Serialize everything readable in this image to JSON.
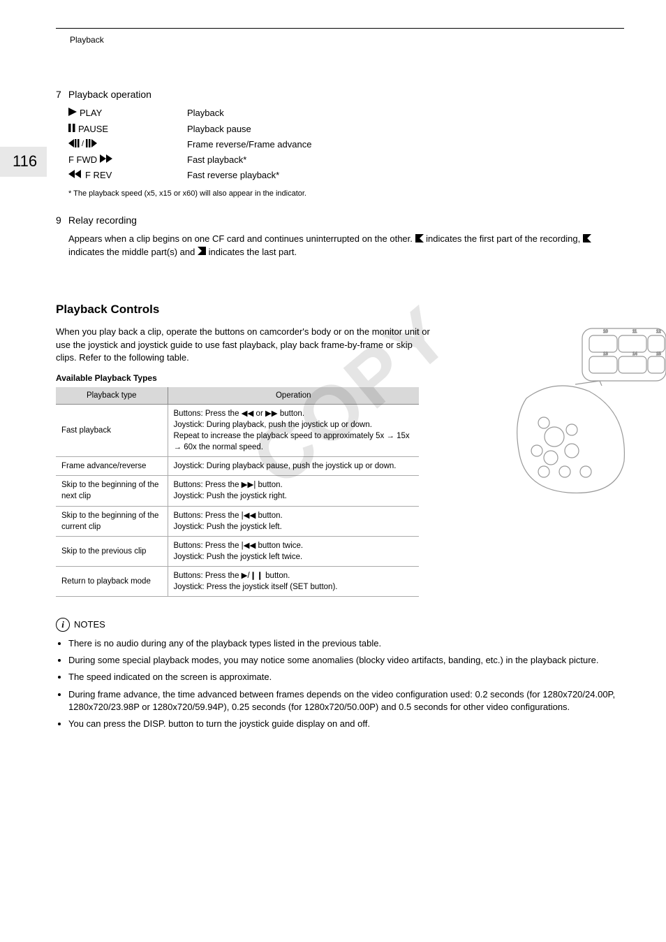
{
  "header": {
    "section": "Playback"
  },
  "page_number": "116",
  "item7": {
    "heading_num": "7",
    "heading_text": "Playback operation",
    "rows": [
      {
        "symbol_svg": "play",
        "label": "PLAY",
        "desc": "Playback"
      },
      {
        "symbol_svg": "pause",
        "label": "PAUSE",
        "desc": "Playback pause"
      },
      {
        "symbol_svg": "frame",
        "label": "",
        "desc": "Frame reverse/Frame advance"
      },
      {
        "symbol_svg": "ffwd",
        "label": "F FWD",
        "desc": "Fast playback*"
      },
      {
        "symbol_svg": "frev",
        "label": "F REV",
        "desc": "Fast reverse playback*"
      }
    ],
    "footnote": "* The playback speed (x5, x15 or x60) will also appear in the indicator."
  },
  "item9": {
    "heading_num": "9",
    "heading_text": "Relay recording",
    "body_1": "Appears when a clip begins on one CF card and continues uninterrupted on the other. ",
    "body_2": " indicates the first part of the recording, ",
    "body_3": " indicates the middle part(s) and ",
    "body_4": " indicates the last part."
  },
  "controls": {
    "heading": "Playback Controls",
    "intro": "When you play back a clip, operate the buttons on camcorder's body or on the monitor unit or use the joystick and joystick guide to use fast playback, play back frame-by-frame or skip clips. Refer to the following table.",
    "subhead": "Available Playback Types",
    "table": {
      "col1": "Playback type",
      "col2": "Operation",
      "rows": [
        {
          "type": "Fast playback",
          "op": "Buttons: Press the ◀◀ or ▶▶ button.\nJoystick: During playback, push the joystick up or down.\nRepeat to increase the playback speed to approximately 5x → 15x → 60x the normal speed."
        },
        {
          "type": "Frame advance/reverse",
          "op": "Joystick: During playback pause, push the joystick up or down."
        },
        {
          "type": "Skip to the beginning of the next clip",
          "op": "Buttons: Press the ▶▶| button.\nJoystick: Push the joystick right."
        },
        {
          "type": "Skip to the beginning of the current clip",
          "op": "Buttons: Press the |◀◀ button.\nJoystick: Push the joystick left."
        },
        {
          "type": "Skip to the previous clip",
          "op": "Buttons: Press the |◀◀ button twice.\nJoystick: Push the joystick left twice."
        },
        {
          "type": "Return to playback mode",
          "op": "Buttons: Press the ▶/❙❙ button.\nJoystick: Press the joystick itself (SET button)."
        }
      ]
    }
  },
  "notes": {
    "heading": "NOTES",
    "items": [
      "There is no audio during any of the playback types listed in the previous table.",
      "During some special playback modes, you may notice some anomalies (blocky video artifacts, banding, etc.) in the playback picture.",
      "The speed indicated on the screen is approximate.",
      "During frame advance, the time advanced between frames depends on the video configuration used: 0.2 seconds (for 1280x720/24.00P, 1280x720/23.98P or 1280x720/59.94P), 0.25 seconds (for 1280x720/50.00P) and 0.5 seconds for other video configurations.",
      "You can press the DISP. button to turn the joystick guide display on and off."
    ]
  },
  "watermark": "COPY",
  "colors": {
    "header_bg": "#d9d9d9",
    "border": "#aaaaaa",
    "page_box_bg": "#e8e8e8",
    "watermark": "rgba(0,0,0,0.10)"
  }
}
